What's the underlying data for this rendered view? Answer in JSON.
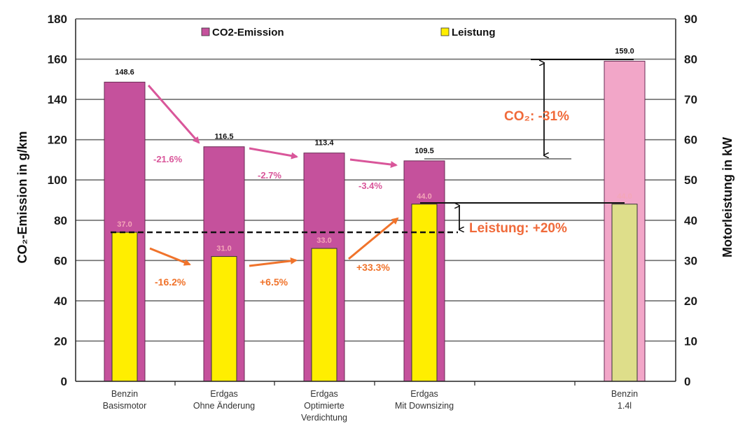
{
  "chart_data": {
    "type": "bar",
    "categories": [
      [
        "Benzin",
        "Basismotor"
      ],
      [
        "Erdgas",
        "Ohne Änderung"
      ],
      [
        "Erdgas",
        "Optimierte",
        "Verdichtung"
      ],
      [
        "Erdgas",
        "Mit Downsizing"
      ],
      [
        "Benzin",
        "1.4l"
      ]
    ],
    "series": [
      {
        "name": "CO2-Emission",
        "axis": "left",
        "values": [
          148.6,
          116.5,
          113.4,
          109.5,
          159.0
        ],
        "labels": [
          "148.6",
          "116.5",
          "113.4",
          "109.5",
          "159.0"
        ],
        "colors": [
          "#c5519c",
          "#c5519c",
          "#c5519c",
          "#c5519c",
          "#f2a6c8"
        ]
      },
      {
        "name": "Leistung",
        "axis": "right",
        "values": [
          37.0,
          31.0,
          33.0,
          44.0,
          44.0
        ],
        "labels": [
          "37.0",
          "31.0",
          "33.0",
          "44.0",
          "44.0"
        ],
        "colors": [
          "#ffee00",
          "#ffee00",
          "#ffee00",
          "#ffee00",
          "#dede8a"
        ]
      }
    ],
    "ylabel": "CO₂-Emission in g/km",
    "y2label": "Motorleistung in kW",
    "ylim": [
      0,
      180
    ],
    "y2lim": [
      0,
      90
    ],
    "yticks": [
      "0",
      "20",
      "40",
      "60",
      "80",
      "100",
      "120",
      "140",
      "160",
      "180"
    ],
    "y2ticks": [
      "0",
      "10",
      "20",
      "30",
      "40",
      "50",
      "60",
      "70",
      "80",
      "90"
    ],
    "grid": true,
    "legend_position": "top",
    "annotations": {
      "co2_changes": [
        "-21.6%",
        "-2.7%",
        "-3.4%"
      ],
      "power_changes": [
        "-16.2%",
        "+6.5%",
        "+33.3%"
      ],
      "co2_summary": "CO₂: -31%",
      "power_summary": "Leistung: +20%"
    }
  },
  "colors": {
    "co2": "#c5519c",
    "co2_light": "#f2a6c8",
    "power": "#ffee00",
    "power_light": "#dede8a",
    "pink_arrow": "#d9569a",
    "orange_arrow": "#f0732b"
  }
}
